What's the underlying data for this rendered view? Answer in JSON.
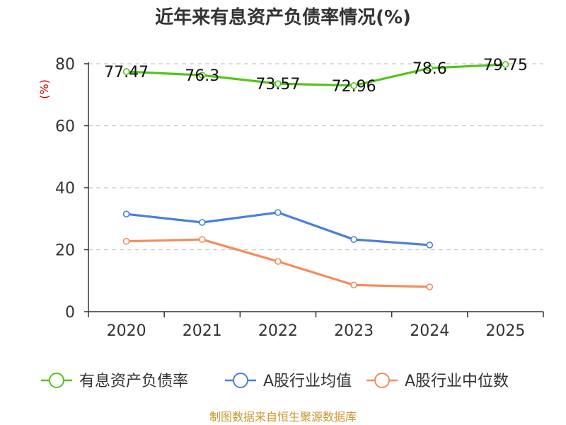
{
  "chart_data": {
    "type": "line",
    "title": "近年来有息资产负债率情况(%)",
    "ylabel": "(%)",
    "xlabel": "",
    "categories": [
      "2020",
      "2021",
      "2022",
      "2023",
      "2024",
      "2025"
    ],
    "ylim": [
      0,
      80
    ],
    "yticks": [
      0,
      20,
      40,
      60,
      80
    ],
    "grid": true,
    "legend_position": "bottom",
    "series": [
      {
        "name": "有息资产负债率",
        "color": "#52c41a",
        "values": [
          77.47,
          76.3,
          73.57,
          72.96,
          78.6,
          79.75
        ],
        "labels": [
          "77.47",
          "76.3",
          "73.57",
          "72.96",
          "78.6",
          "79.75"
        ]
      },
      {
        "name": "A股行业均值",
        "color": "#4a7fdc",
        "values": [
          31.5,
          28.8,
          32.0,
          23.3,
          21.5,
          null
        ]
      },
      {
        "name": "A股行业中位数",
        "color": "#f58c5a",
        "values": [
          22.7,
          23.3,
          16.2,
          8.6,
          8.0,
          null
        ]
      }
    ]
  },
  "source": "制图数据来自恒生聚源数据库"
}
